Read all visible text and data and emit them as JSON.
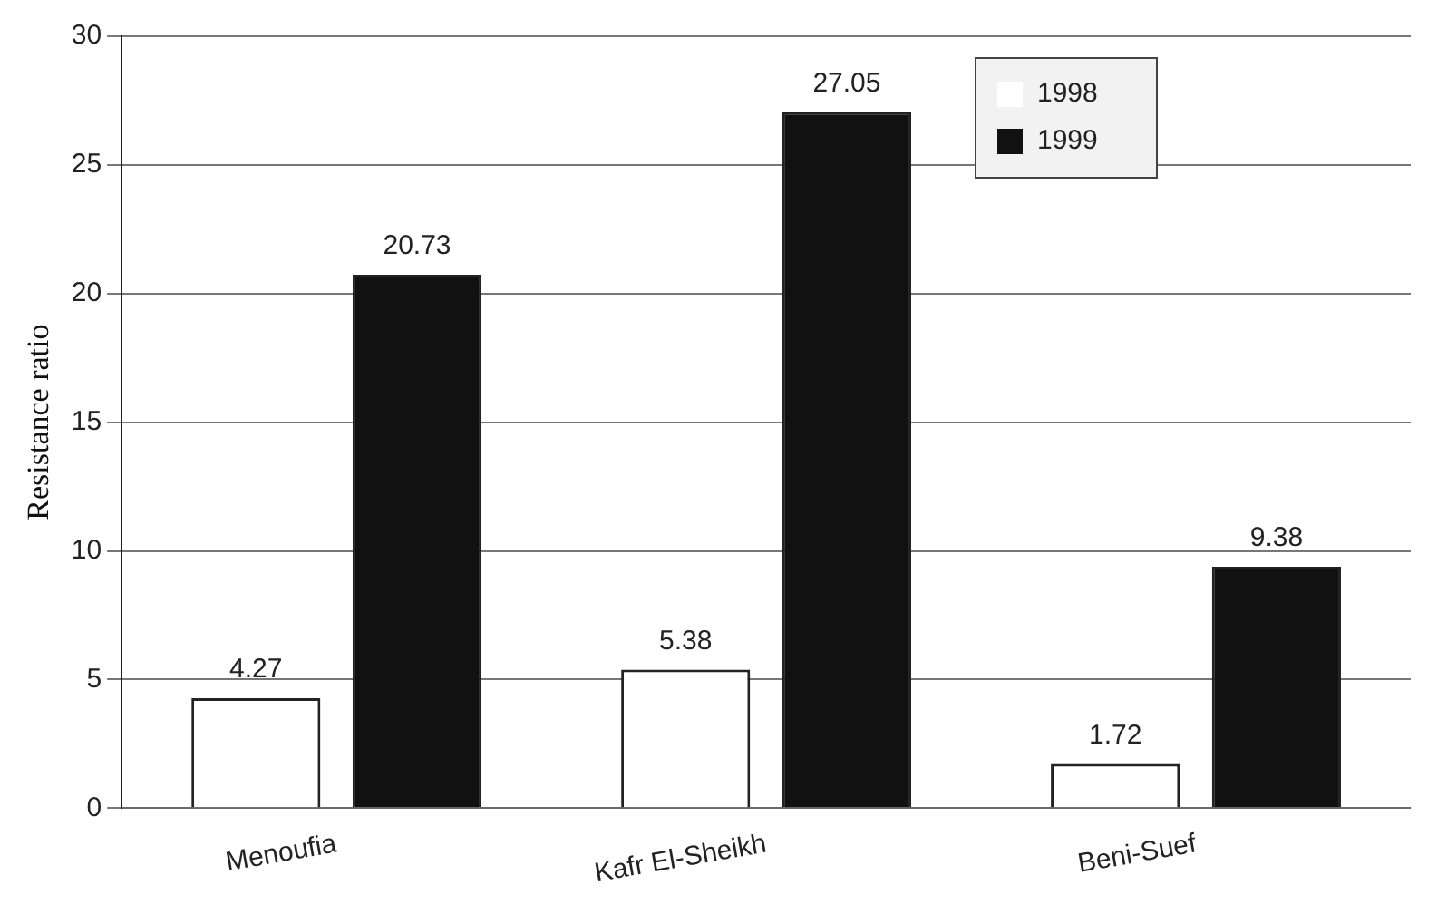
{
  "chart_data": {
    "type": "bar",
    "ylabel": "Resistance ratio",
    "categories": [
      "Menoufia",
      "Kafr El-Sheikh",
      "Beni-Suef"
    ],
    "series": [
      {
        "name": "1998",
        "color": "#ffffff",
        "values": [
          4.27,
          5.38,
          1.72
        ]
      },
      {
        "name": "1999",
        "color": "#111111",
        "values": [
          20.73,
          27.05,
          9.38
        ]
      }
    ],
    "ylim": [
      0,
      30
    ],
    "yticks": [
      0,
      5,
      10,
      15,
      20,
      25,
      30
    ],
    "grid": "y",
    "legend": "top right",
    "data_labels": true
  }
}
